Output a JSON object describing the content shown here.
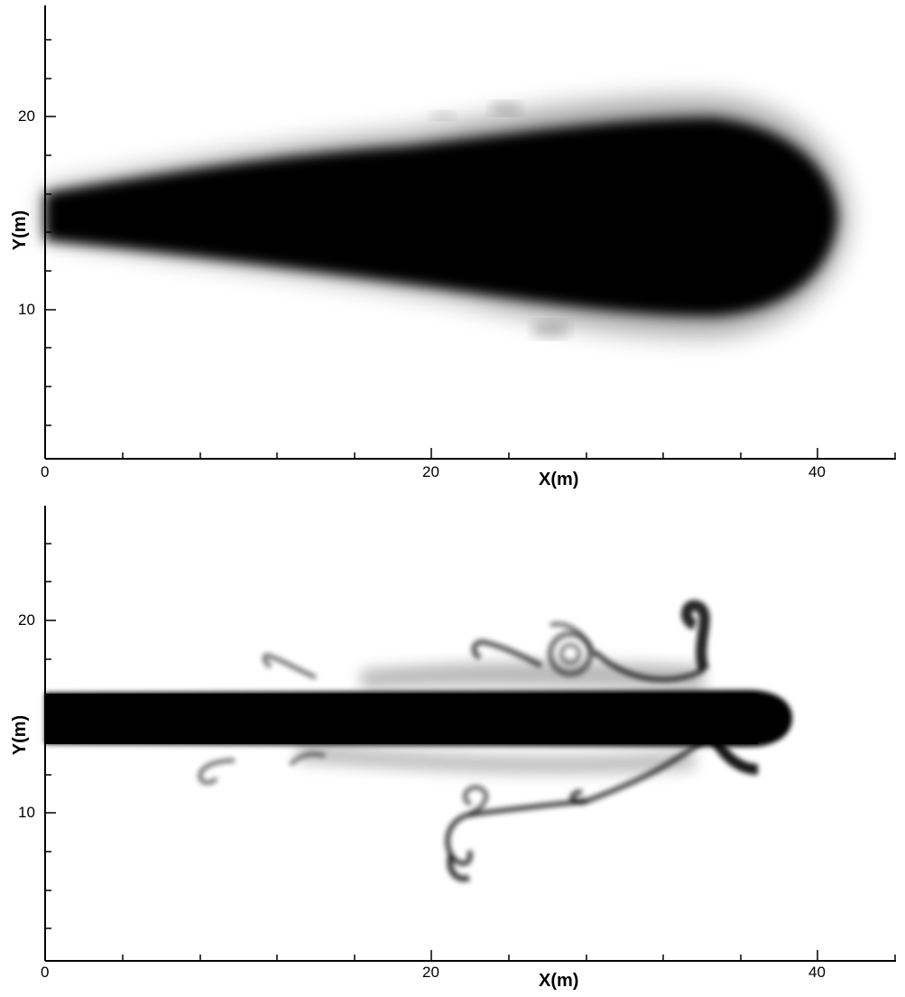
{
  "panels": [
    {
      "id": "top",
      "x_ticks": [
        "0",
        "20",
        "40"
      ],
      "y_ticks": [
        "20",
        "10"
      ],
      "xlabel": "X(m)",
      "ylabel": "Y(m)"
    },
    {
      "id": "bottom",
      "x_ticks": [
        "0",
        "20",
        "40"
      ],
      "y_ticks": [
        "20",
        "10"
      ],
      "xlabel": "X(m)",
      "ylabel": "Y(m)"
    }
  ],
  "colors": {
    "plume": "#000000",
    "background": "#ffffff",
    "axis": "#000000"
  }
}
